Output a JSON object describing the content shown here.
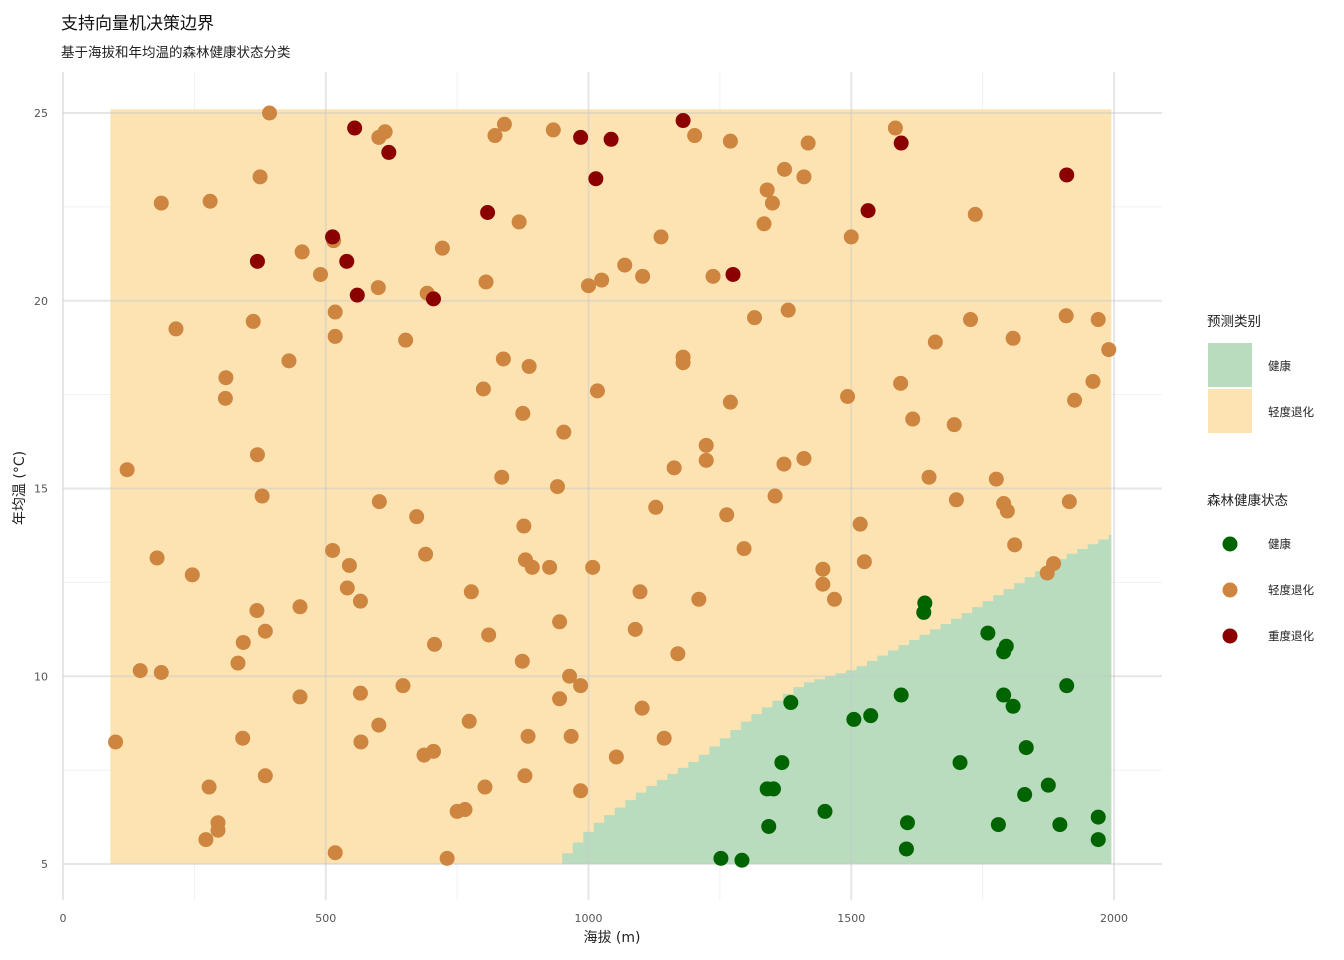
{
  "chart_data": {
    "type": "scatter",
    "title": "支持向量机决策边界",
    "subtitle": "基于海拔和年均温的森林健康状态分类",
    "xlabel": "海拔 (m)",
    "ylabel": "年均温 (°C)",
    "xlim": [
      0,
      2000
    ],
    "ylim": [
      4.2,
      26
    ],
    "x_ticks": [
      0,
      500,
      1000,
      1500,
      2000
    ],
    "y_ticks": [
      5,
      10,
      15,
      20,
      25
    ],
    "grid": true,
    "legend_position": "right",
    "fill_legend": {
      "title": "预测类别",
      "items": [
        {
          "label": "健康",
          "color": "#b9dcbe"
        },
        {
          "label": "轻度退化",
          "color": "#fde3b1"
        }
      ]
    },
    "point_legend": {
      "title": "森林健康状态",
      "items": [
        {
          "label": "健康",
          "color": "#006400"
        },
        {
          "label": "轻度退化",
          "color": "#cd853f"
        },
        {
          "label": "重度退化",
          "color": "#8b0000"
        }
      ]
    },
    "decision_region": {
      "x_range": [
        90,
        1995
      ],
      "y_range": [
        5.0,
        25.1
      ],
      "healthy_boundary": [
        {
          "x": 930,
          "y": 5.0
        },
        {
          "x": 1000,
          "y": 6.0
        },
        {
          "x": 1100,
          "y": 7.0
        },
        {
          "x": 1200,
          "y": 7.8
        },
        {
          "x": 1300,
          "y": 8.9
        },
        {
          "x": 1400,
          "y": 9.8
        },
        {
          "x": 1500,
          "y": 10.2
        },
        {
          "x": 1600,
          "y": 10.9
        },
        {
          "x": 1700,
          "y": 11.6
        },
        {
          "x": 1800,
          "y": 12.4
        },
        {
          "x": 1900,
          "y": 13.2
        },
        {
          "x": 1995,
          "y": 13.8
        }
      ]
    },
    "series": [
      {
        "name": "健康",
        "color": "#006400",
        "points": [
          [
            1640,
            11.95
          ],
          [
            1638,
            11.7
          ],
          [
            1760,
            11.15
          ],
          [
            1795,
            10.8
          ],
          [
            1790,
            10.65
          ],
          [
            1385,
            9.3
          ],
          [
            1595,
            9.5
          ],
          [
            1790,
            9.5
          ],
          [
            1910,
            9.75
          ],
          [
            1808,
            9.2
          ],
          [
            1505,
            8.85
          ],
          [
            1537,
            8.95
          ],
          [
            1833,
            8.1
          ],
          [
            1368,
            7.7
          ],
          [
            1707,
            7.7
          ],
          [
            1340,
            7.0
          ],
          [
            1352,
            7.0
          ],
          [
            1875,
            7.1
          ],
          [
            1830,
            6.85
          ],
          [
            1450,
            6.4
          ],
          [
            1607,
            6.1
          ],
          [
            1343,
            6.0
          ],
          [
            1780,
            6.05
          ],
          [
            1897,
            6.05
          ],
          [
            1970,
            6.25
          ],
          [
            1605,
            5.4
          ],
          [
            1970,
            5.65
          ],
          [
            1252,
            5.15
          ],
          [
            1292,
            5.1
          ]
        ]
      },
      {
        "name": "轻度退化",
        "color": "#cd853f",
        "points": [
          [
            393,
            25.0
          ],
          [
            601,
            24.35
          ],
          [
            613,
            24.5
          ],
          [
            822,
            24.4
          ],
          [
            840,
            24.7
          ],
          [
            933,
            24.55
          ],
          [
            1202,
            24.4
          ],
          [
            1270,
            24.25
          ],
          [
            1418,
            24.2
          ],
          [
            1584,
            24.6
          ],
          [
            1373,
            23.5
          ],
          [
            375,
            23.3
          ],
          [
            1410,
            23.3
          ],
          [
            1340,
            22.95
          ],
          [
            1350,
            22.6
          ],
          [
            187,
            22.6
          ],
          [
            280,
            22.65
          ],
          [
            1736,
            22.3
          ],
          [
            1334,
            22.05
          ],
          [
            868,
            22.1
          ],
          [
            1138,
            21.7
          ],
          [
            1500,
            21.7
          ],
          [
            515,
            21.6
          ],
          [
            455,
            21.3
          ],
          [
            722,
            21.4
          ],
          [
            1069,
            20.95
          ],
          [
            490,
            20.7
          ],
          [
            1103,
            20.65
          ],
          [
            1025,
            20.55
          ],
          [
            1237,
            20.65
          ],
          [
            805,
            20.5
          ],
          [
            1000,
            20.4
          ],
          [
            600,
            20.35
          ],
          [
            693,
            20.2
          ],
          [
            518,
            19.7
          ],
          [
            1316,
            19.55
          ],
          [
            1380,
            19.75
          ],
          [
            1727,
            19.5
          ],
          [
            1909,
            19.6
          ],
          [
            1970,
            19.5
          ],
          [
            362,
            19.45
          ],
          [
            215,
            19.25
          ],
          [
            518,
            19.05
          ],
          [
            652,
            18.95
          ],
          [
            1660,
            18.9
          ],
          [
            1808,
            19.0
          ],
          [
            1990,
            18.7
          ],
          [
            430,
            18.4
          ],
          [
            838,
            18.45
          ],
          [
            1180,
            18.5
          ],
          [
            1180,
            18.35
          ],
          [
            887,
            18.25
          ],
          [
            310,
            17.95
          ],
          [
            1594,
            17.8
          ],
          [
            1960,
            17.85
          ],
          [
            800,
            17.65
          ],
          [
            1017,
            17.6
          ],
          [
            309,
            17.4
          ],
          [
            1270,
            17.3
          ],
          [
            1493,
            17.45
          ],
          [
            1925,
            17.35
          ],
          [
            875,
            17.0
          ],
          [
            1617,
            16.85
          ],
          [
            1696,
            16.7
          ],
          [
            953,
            16.5
          ],
          [
            1224,
            16.15
          ],
          [
            370,
            15.9
          ],
          [
            1224,
            15.75
          ],
          [
            1410,
            15.8
          ],
          [
            1163,
            15.55
          ],
          [
            1372,
            15.65
          ],
          [
            122,
            15.5
          ],
          [
            1648,
            15.3
          ],
          [
            1776,
            15.25
          ],
          [
            835,
            15.3
          ],
          [
            941,
            15.05
          ],
          [
            379,
            14.8
          ],
          [
            1355,
            14.8
          ],
          [
            602,
            14.65
          ],
          [
            1700,
            14.7
          ],
          [
            1790,
            14.6
          ],
          [
            1797,
            14.4
          ],
          [
            1915,
            14.65
          ],
          [
            1128,
            14.5
          ],
          [
            1263,
            14.3
          ],
          [
            673,
            14.25
          ],
          [
            1517,
            14.05
          ],
          [
            877,
            14.0
          ],
          [
            1811,
            13.5
          ],
          [
            1296,
            13.4
          ],
          [
            513,
            13.35
          ],
          [
            690,
            13.25
          ],
          [
            179,
            13.15
          ],
          [
            880,
            13.1
          ],
          [
            1525,
            13.05
          ],
          [
            1885,
            13.0
          ],
          [
            545,
            12.95
          ],
          [
            893,
            12.9
          ],
          [
            926,
            12.9
          ],
          [
            1008,
            12.9
          ],
          [
            1446,
            12.85
          ],
          [
            1873,
            12.75
          ],
          [
            246,
            12.7
          ],
          [
            1446,
            12.45
          ],
          [
            541,
            12.35
          ],
          [
            1098,
            12.25
          ],
          [
            777,
            12.25
          ],
          [
            1468,
            12.05
          ],
          [
            1210,
            12.05
          ],
          [
            566,
            12.0
          ],
          [
            451,
            11.85
          ],
          [
            369,
            11.75
          ],
          [
            945,
            11.45
          ],
          [
            385,
            11.2
          ],
          [
            1089,
            11.25
          ],
          [
            810,
            11.1
          ],
          [
            343,
            10.9
          ],
          [
            707,
            10.85
          ],
          [
            1170,
            10.6
          ],
          [
            874,
            10.4
          ],
          [
            333,
            10.35
          ],
          [
            147,
            10.15
          ],
          [
            187,
            10.1
          ],
          [
            964,
            10.0
          ],
          [
            985,
            9.75
          ],
          [
            647,
            9.75
          ],
          [
            566,
            9.55
          ],
          [
            451,
            9.45
          ],
          [
            945,
            9.4
          ],
          [
            1102,
            9.15
          ],
          [
            601,
            8.7
          ],
          [
            773,
            8.8
          ],
          [
            342,
            8.35
          ],
          [
            567,
            8.25
          ],
          [
            100,
            8.25
          ],
          [
            885,
            8.4
          ],
          [
            1144,
            8.35
          ],
          [
            967,
            8.4
          ],
          [
            705,
            8.0
          ],
          [
            687,
            7.9
          ],
          [
            1053,
            7.85
          ],
          [
            385,
            7.35
          ],
          [
            879,
            7.35
          ],
          [
            278,
            7.05
          ],
          [
            803,
            7.05
          ],
          [
            985,
            6.95
          ],
          [
            765,
            6.45
          ],
          [
            750,
            6.4
          ],
          [
            295,
            6.1
          ],
          [
            295,
            5.9
          ],
          [
            272,
            5.65
          ],
          [
            518,
            5.3
          ],
          [
            731,
            5.15
          ]
        ]
      },
      {
        "name": "重度退化",
        "color": "#8b0000",
        "points": [
          [
            555,
            24.6
          ],
          [
            1180,
            24.8
          ],
          [
            985,
            24.35
          ],
          [
            1043,
            24.3
          ],
          [
            1595,
            24.2
          ],
          [
            620,
            23.95
          ],
          [
            1014,
            23.25
          ],
          [
            1910,
            23.35
          ],
          [
            808,
            22.35
          ],
          [
            1532,
            22.4
          ],
          [
            513,
            21.7
          ],
          [
            370,
            21.05
          ],
          [
            540,
            21.05
          ],
          [
            1275,
            20.7
          ],
          [
            560,
            20.15
          ],
          [
            705,
            20.05
          ]
        ]
      }
    ]
  }
}
